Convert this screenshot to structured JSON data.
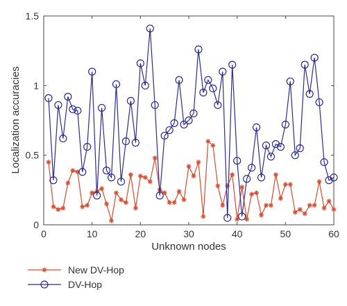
{
  "chart_data": {
    "type": "line",
    "title": "",
    "xlabel": "Unknown nodes",
    "ylabel": "Localization accuracies",
    "xlim": [
      0,
      60
    ],
    "ylim": [
      0,
      1.5
    ],
    "xticks": [
      0,
      10,
      20,
      30,
      40,
      50,
      60
    ],
    "yticks": [
      0,
      0.5,
      1,
      1.5
    ],
    "xtick_labels": [
      "0",
      "10",
      "20",
      "30",
      "40",
      "50",
      "60"
    ],
    "ytick_labels": [
      "0",
      "0.5",
      "1",
      "1.5"
    ],
    "grid": false,
    "legend_position": "below-left",
    "x": [
      1,
      2,
      3,
      4,
      5,
      6,
      7,
      8,
      9,
      10,
      11,
      12,
      13,
      14,
      15,
      16,
      17,
      18,
      19,
      20,
      21,
      22,
      23,
      24,
      25,
      26,
      27,
      28,
      29,
      30,
      31,
      32,
      33,
      34,
      35,
      36,
      37,
      38,
      39,
      40,
      41,
      42,
      43,
      44,
      45,
      46,
      47,
      48,
      49,
      50,
      51,
      52,
      53,
      54,
      55,
      56,
      57,
      58,
      59,
      60
    ],
    "series": [
      {
        "name": "New DV-Hop",
        "color": "#d94a2b",
        "marker": "asterisk",
        "values": [
          0.45,
          0.13,
          0.11,
          0.12,
          0.3,
          0.39,
          0.38,
          0.13,
          0.14,
          0.23,
          0.24,
          0.26,
          0.15,
          0.03,
          0.23,
          0.18,
          0.16,
          0.36,
          0.12,
          0.35,
          0.34,
          0.31,
          0.48,
          0.25,
          0.23,
          0.16,
          0.16,
          0.24,
          0.18,
          0.42,
          0.35,
          0.45,
          0.06,
          0.6,
          0.57,
          0.28,
          0.14,
          0.28,
          0.36,
          0.04,
          0.27,
          0.04,
          0.22,
          0.23,
          0.07,
          0.14,
          0.14,
          0.36,
          0.19,
          0.29,
          0.29,
          0.09,
          0.11,
          0.08,
          0.14,
          0.14,
          0.31,
          0.12,
          0.17,
          0.11
        ]
      },
      {
        "name": "DV-Hop",
        "color": "#2b2b8f",
        "marker": "circle",
        "values": [
          0.91,
          0.32,
          0.86,
          0.62,
          0.92,
          0.83,
          0.82,
          0.38,
          0.56,
          1.1,
          0.21,
          0.84,
          0.39,
          0.34,
          1.01,
          0.31,
          0.6,
          0.89,
          0.59,
          1.16,
          1.0,
          1.41,
          0.86,
          0.21,
          0.64,
          0.68,
          0.73,
          1.04,
          0.72,
          0.75,
          0.8,
          1.26,
          0.95,
          1.04,
          0.98,
          0.86,
          1.1,
          0.05,
          1.15,
          0.46,
          0.06,
          0.33,
          0.41,
          0.7,
          0.34,
          0.57,
          0.49,
          0.58,
          0.56,
          0.72,
          1.03,
          0.5,
          0.55,
          1.15,
          0.94,
          1.2,
          0.88,
          0.45,
          0.32,
          0.34
        ]
      }
    ]
  }
}
